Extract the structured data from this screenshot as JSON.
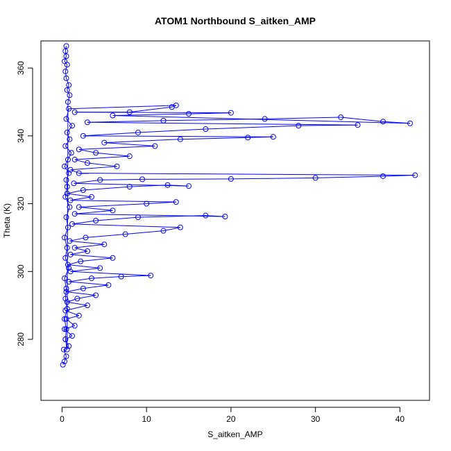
{
  "chart_data": {
    "type": "scatter",
    "title": "ATOM1 Northbound S_aitken_AMP",
    "xlabel": "S_aitken_AMP",
    "ylabel": "Theta (K)",
    "xlim": [
      -2.5,
      43.5
    ],
    "ylim": [
      262,
      368
    ],
    "x_ticks": [
      0,
      10,
      20,
      30,
      40
    ],
    "y_ticks": [
      280,
      300,
      320,
      340,
      360
    ],
    "grid": false,
    "legend": "none",
    "marker": "open-circle",
    "connected": true,
    "series": [
      {
        "color": "#0000ff",
        "points": [
          [
            0.1,
            272.5
          ],
          [
            0.3,
            273.5
          ],
          [
            0.5,
            275
          ],
          [
            0.2,
            277
          ],
          [
            0.8,
            278
          ],
          [
            0.4,
            280
          ],
          [
            1.2,
            281
          ],
          [
            0.3,
            283
          ],
          [
            1.5,
            284
          ],
          [
            0.5,
            286
          ],
          [
            2.0,
            287
          ],
          [
            0.4,
            288.5
          ],
          [
            3.0,
            290
          ],
          [
            0.6,
            291
          ],
          [
            1.8,
            292
          ],
          [
            4.0,
            293
          ],
          [
            0.5,
            294
          ],
          [
            2.5,
            295
          ],
          [
            5.5,
            296
          ],
          [
            0.8,
            297
          ],
          [
            3.5,
            298
          ],
          [
            7.0,
            298.5
          ],
          [
            10.5,
            298.8
          ],
          [
            1.0,
            300
          ],
          [
            4.5,
            301
          ],
          [
            0.7,
            302
          ],
          [
            2.2,
            303
          ],
          [
            6.0,
            304
          ],
          [
            1.0,
            305
          ],
          [
            3.0,
            306
          ],
          [
            1.5,
            307
          ],
          [
            5.0,
            308
          ],
          [
            0.9,
            309
          ],
          [
            2.8,
            310
          ],
          [
            7.5,
            311
          ],
          [
            12.0,
            312
          ],
          [
            14.0,
            313
          ],
          [
            1.2,
            314
          ],
          [
            4.0,
            315
          ],
          [
            9.0,
            316
          ],
          [
            17.0,
            316.5
          ],
          [
            19.3,
            316.2
          ],
          [
            1.5,
            317
          ],
          [
            6.0,
            318
          ],
          [
            2.0,
            319
          ],
          [
            10.0,
            320
          ],
          [
            13.5,
            320.5
          ],
          [
            1.0,
            321
          ],
          [
            3.5,
            322
          ],
          [
            0.6,
            323
          ],
          [
            2.5,
            324
          ],
          [
            8.0,
            325
          ],
          [
            12.5,
            325.5
          ],
          [
            15.0,
            325.2
          ],
          [
            1.4,
            326
          ],
          [
            4.5,
            327
          ],
          [
            9.5,
            327.2
          ],
          [
            20.0,
            327.3
          ],
          [
            30.0,
            327.6
          ],
          [
            38.0,
            328.1
          ],
          [
            41.8,
            328.4
          ],
          [
            2.0,
            329
          ],
          [
            1.0,
            330
          ],
          [
            6.5,
            331
          ],
          [
            3.0,
            332
          ],
          [
            1.5,
            333
          ],
          [
            8.0,
            334
          ],
          [
            4.0,
            335
          ],
          [
            2.0,
            336
          ],
          [
            11.0,
            337
          ],
          [
            5.0,
            338
          ],
          [
            14.0,
            339
          ],
          [
            22.0,
            339.5
          ],
          [
            25.0,
            339.7
          ],
          [
            2.5,
            340
          ],
          [
            9.0,
            341
          ],
          [
            17.0,
            342
          ],
          [
            28.0,
            343
          ],
          [
            35.0,
            343.2
          ],
          [
            3.0,
            344
          ],
          [
            12.0,
            344.5
          ],
          [
            24.0,
            345
          ],
          [
            33.0,
            345.5
          ],
          [
            38.0,
            344.2
          ],
          [
            41.2,
            343.7
          ],
          [
            6.0,
            346
          ],
          [
            15.0,
            346.5
          ],
          [
            20.0,
            346.8
          ],
          [
            1.5,
            347
          ],
          [
            8.0,
            347
          ],
          [
            13.0,
            348.5
          ],
          [
            13.5,
            349
          ],
          [
            0.8,
            348
          ],
          [
            0.5,
            345
          ],
          [
            1.2,
            343
          ],
          [
            0.6,
            341
          ],
          [
            0.9,
            339
          ],
          [
            0.4,
            337
          ],
          [
            1.1,
            335
          ],
          [
            0.7,
            333
          ],
          [
            0.3,
            331
          ],
          [
            0.8,
            329
          ],
          [
            0.5,
            327
          ],
          [
            0.6,
            325
          ],
          [
            0.4,
            322
          ],
          [
            0.9,
            319
          ],
          [
            0.5,
            316
          ],
          [
            0.7,
            313
          ],
          [
            0.3,
            310
          ],
          [
            0.6,
            307
          ],
          [
            0.4,
            304
          ],
          [
            0.8,
            301
          ],
          [
            0.3,
            298
          ],
          [
            0.5,
            295
          ],
          [
            0.4,
            292
          ],
          [
            0.6,
            289
          ],
          [
            0.3,
            286
          ],
          [
            0.5,
            283
          ],
          [
            0.4,
            280
          ],
          [
            0.6,
            277
          ],
          [
            0.7,
            350
          ],
          [
            0.9,
            352
          ],
          [
            0.6,
            353.5
          ],
          [
            0.8,
            355
          ],
          [
            0.5,
            357
          ],
          [
            0.4,
            359
          ],
          [
            0.6,
            361
          ],
          [
            0.3,
            362
          ],
          [
            0.5,
            363.5
          ],
          [
            0.4,
            365
          ],
          [
            0.5,
            366.5
          ]
        ]
      }
    ]
  }
}
